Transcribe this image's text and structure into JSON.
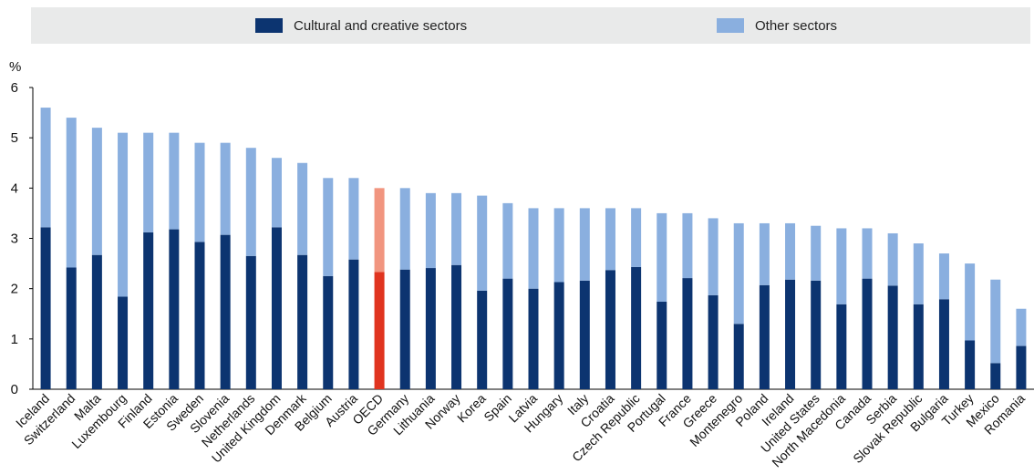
{
  "chart_data": {
    "type": "bar",
    "stacked": true,
    "ylabel": "%",
    "ylim": [
      0,
      6
    ],
    "yticks": [
      0,
      1,
      2,
      3,
      4,
      5,
      6
    ],
    "grid": false,
    "legend_position": "top",
    "categories": [
      "Iceland",
      "Switzerland",
      "Malta",
      "Luxembourg",
      "Finland",
      "Estonia",
      "Sweden",
      "Slovenia",
      "Netherlands",
      "United Kingdom",
      "Denmark",
      "Belgium",
      "Austria",
      "OECD",
      "Germany",
      "Lithuania",
      "Norway",
      "Korea",
      "Spain",
      "Latvia",
      "Hungary",
      "Italy",
      "Croatia",
      "Czech Republic",
      "Portugal",
      "France",
      "Greece",
      "Montenegro",
      "Poland",
      "Ireland",
      "United States",
      "North Macedonia",
      "Canada",
      "Serbia",
      "Slovak Republic",
      "Bulgaria",
      "Turkey",
      "Mexico",
      "Romania"
    ],
    "highlight_category": "OECD",
    "series": [
      {
        "name": "Cultural and creative sectors",
        "color": "#0c3470",
        "highlight_color": "#e0341f",
        "values": [
          3.22,
          2.42,
          2.67,
          1.84,
          3.12,
          3.18,
          2.93,
          3.07,
          2.65,
          3.22,
          2.67,
          2.25,
          2.58,
          2.33,
          2.38,
          2.41,
          2.47,
          1.96,
          2.2,
          2.0,
          2.13,
          2.16,
          2.37,
          2.43,
          1.74,
          2.21,
          1.87,
          1.3,
          2.07,
          2.18,
          2.16,
          1.69,
          2.2,
          2.06,
          1.69,
          1.79,
          0.97,
          0.52,
          0.86
        ]
      },
      {
        "name": "Other sectors",
        "color": "#8aafdf",
        "highlight_color": "#f1957f",
        "totals": [
          5.6,
          5.4,
          5.2,
          5.1,
          5.1,
          5.1,
          4.9,
          4.9,
          4.8,
          4.6,
          4.5,
          4.2,
          4.2,
          4.0,
          4.0,
          3.9,
          3.9,
          3.85,
          3.7,
          3.6,
          3.6,
          3.6,
          3.6,
          3.6,
          3.5,
          3.5,
          3.4,
          3.3,
          3.3,
          3.3,
          3.25,
          3.2,
          3.2,
          3.1,
          2.9,
          2.7,
          2.5,
          2.18,
          1.6
        ],
        "values": [
          2.38,
          2.98,
          2.53,
          3.26,
          1.98,
          1.92,
          1.97,
          1.83,
          2.15,
          1.38,
          1.83,
          1.95,
          1.62,
          1.67,
          1.62,
          1.49,
          1.43,
          1.89,
          1.5,
          1.6,
          1.47,
          1.44,
          1.23,
          1.17,
          1.76,
          1.29,
          1.53,
          2.0,
          1.23,
          1.12,
          1.09,
          1.51,
          1.0,
          1.04,
          1.21,
          0.91,
          1.53,
          1.66,
          0.74
        ]
      }
    ]
  }
}
